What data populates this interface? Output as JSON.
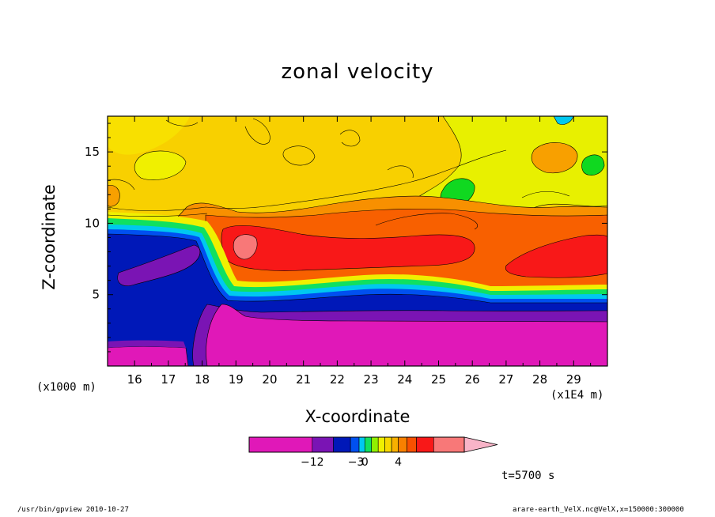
{
  "chart_data": {
    "type": "heatmap",
    "title": "zonal velocity",
    "xlabel": "X-coordinate",
    "ylabel": "Z-coordinate",
    "x_unit": "(x1E4 m)",
    "y_unit": "(x1000 m)",
    "xlim": [
      15.2,
      30
    ],
    "ylim": [
      0,
      17.5
    ],
    "x_ticks": [
      16,
      17,
      18,
      19,
      20,
      21,
      22,
      23,
      24,
      25,
      26,
      27,
      28,
      29
    ],
    "y_ticks": [
      5,
      10,
      15
    ],
    "colorbar": {
      "labels": [
        {
          "text": "−12",
          "value": -12
        },
        {
          "text": "−3",
          "value": -3
        },
        {
          "text": "0",
          "value": 0
        },
        {
          "text": "4",
          "value": 4
        }
      ],
      "colors": [
        "#e018b8",
        "#7a14b4",
        "#0018b8",
        "#0050f0",
        "#00c8f0",
        "#10e060",
        "#90f000",
        "#f0f000",
        "#f8d800",
        "#f8b000",
        "#f88000",
        "#f85000",
        "#f81818",
        "#f87878",
        "#f8b4c8"
      ]
    },
    "regions": [
      {
        "name": "surface negative layer",
        "z_range": [
          0,
          3.5
        ],
        "value_approx": -14
      },
      {
        "name": "negative transition band",
        "z_range": [
          3.5,
          5.5
        ],
        "value_approx": -8
      },
      {
        "name": "upstream negative block",
        "x_range": [
          15.2,
          18.2
        ],
        "z_range": [
          0,
          9.5
        ],
        "value_approx": -10
      },
      {
        "name": "positive jet core",
        "x_range": [
          18.8,
          26
        ],
        "z_range": [
          6,
          10
        ],
        "value_approx": 6
      },
      {
        "name": "upper weak positive region",
        "z_range": [
          10,
          17.5
        ],
        "value_approx": 2
      }
    ]
  },
  "annotations": {
    "time": "t=5700 s"
  },
  "footer": {
    "left": "/usr/bin/gpview   2010-10-27",
    "right": "arare-earth_VelX.nc@VelX,x=150000:300000"
  }
}
